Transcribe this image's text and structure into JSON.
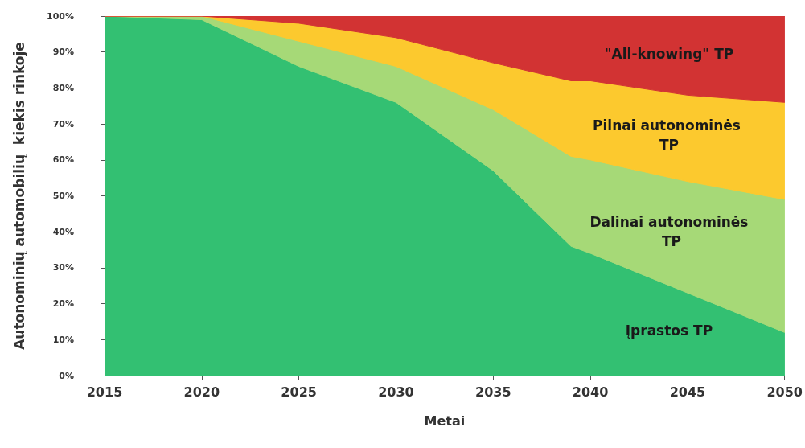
{
  "chart_data": {
    "type": "area",
    "stacked": true,
    "xlabel": "Metai",
    "ylabel": "Autonominių automobilių  kiekis rinkoje",
    "x": [
      2015,
      2020,
      2025,
      2030,
      2035,
      2039,
      2040,
      2045,
      2050
    ],
    "xlim": [
      2015,
      2050
    ],
    "xticks": [
      2015,
      2020,
      2025,
      2030,
      2035,
      2040,
      2045,
      2050
    ],
    "ylim": [
      0,
      100
    ],
    "yticks": [
      {
        "value": 0,
        "label": "0%"
      },
      {
        "value": 10,
        "label": "10%"
      },
      {
        "value": 20,
        "label": "20%"
      },
      {
        "value": 30,
        "label": "30%"
      },
      {
        "value": 40,
        "label": "40%"
      },
      {
        "value": 50,
        "label": "50%"
      },
      {
        "value": 60,
        "label": "60%"
      },
      {
        "value": 70,
        "label": "70%"
      },
      {
        "value": 80,
        "label": "80%"
      },
      {
        "value": 90,
        "label": "90%"
      },
      {
        "value": 100,
        "label": "100%"
      }
    ],
    "series": [
      {
        "name": "Įprastos TP",
        "color": "#33c072",
        "values": [
          100,
          99,
          86,
          76,
          57,
          36,
          34,
          23,
          12
        ]
      },
      {
        "name": "Dalinai autonominės TP",
        "color": "#a6d977",
        "values": [
          0,
          1,
          7,
          10,
          17,
          25,
          26,
          31,
          37
        ]
      },
      {
        "name": "Pilnai autonominės TP",
        "color": "#fcc92e",
        "values": [
          0,
          0,
          5,
          8,
          13,
          21,
          22,
          24,
          27
        ]
      },
      {
        "name": "\"All-knowing\" TP",
        "color": "#d23333",
        "values": [
          0,
          0,
          2,
          6,
          13,
          18,
          18,
          22,
          24
        ]
      }
    ]
  }
}
